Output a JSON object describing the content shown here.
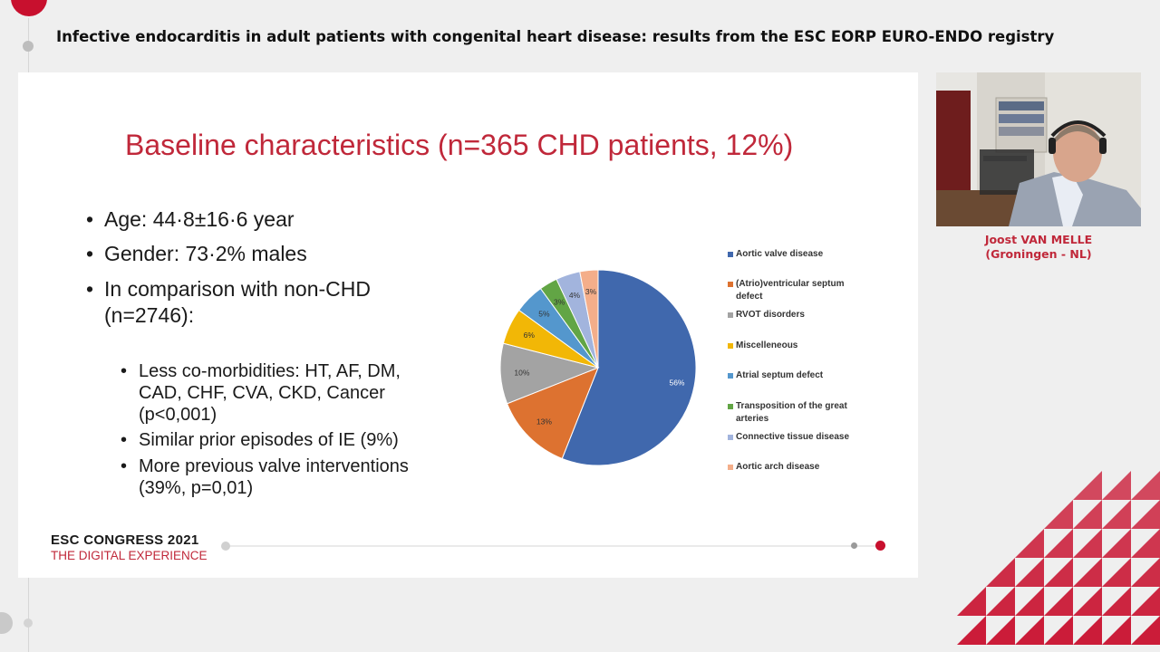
{
  "session": {
    "title": "Infective endocarditis in adult patients with congenital heart disease: results from the ESC EORP EURO-ENDO registry"
  },
  "slide": {
    "title": "Baseline characteristics (n=365 CHD patients, 12%)",
    "bullets": [
      {
        "text": "Age: 44·8±16·6 year"
      },
      {
        "text": "Gender: 73·2% males"
      },
      {
        "text_line1": "In comparison with non-CHD",
        "text_line2": "(n=2746):"
      }
    ],
    "sub_bullets": [
      {
        "lines": [
          "Less co-morbidities: HT, AF, DM,",
          "CAD, CHF, CVA, CKD, Cancer",
          "(p<0,001)"
        ]
      },
      {
        "lines": [
          "Similar prior episodes of IE (9%)"
        ]
      },
      {
        "lines": [
          "More previous valve interventions",
          "(39%, p=0,01)"
        ]
      }
    ],
    "footer": {
      "brand_line1": "ESC CONGRESS 2021",
      "brand_line2": "THE DIGITAL EXPERIENCE"
    }
  },
  "chart_data": {
    "type": "pie",
    "categories": [
      "Aortic valve disease",
      "(Atrio)ventricular septum defect",
      "RVOT disorders",
      "Miscelleneous",
      "Atrial septum defect",
      "Transposition of the great arteries",
      "Connective tissue disease",
      "Aortic arch disease"
    ],
    "values": [
      56,
      13,
      10,
      6,
      5,
      3,
      4,
      3
    ],
    "data_labels": [
      "56%",
      "13%",
      "10%",
      "6%",
      "5%",
      "3%",
      "4%",
      "3%"
    ],
    "colors": [
      "#4068ad",
      "#dd7230",
      "#a3a3a3",
      "#f2b706",
      "#5497cd",
      "#62a545",
      "#a2b4dd",
      "#f4ae8a"
    ],
    "legend_placement": "right",
    "legend_lines": [
      [
        "Aortic valve disease"
      ],
      [
        "(Atrio)ventricular septum",
        "defect"
      ],
      [
        "RVOT disorders"
      ],
      [
        "Miscelleneous"
      ],
      [
        "Atrial septum defect"
      ],
      [
        "Transposition of the great",
        "arteries"
      ],
      [
        "Connective tissue disease"
      ],
      [
        "Aortic arch disease"
      ]
    ]
  },
  "speaker": {
    "name": "Joost VAN MELLE",
    "affiliation": "(Groningen - NL)"
  },
  "brand_color": "#c8102e"
}
